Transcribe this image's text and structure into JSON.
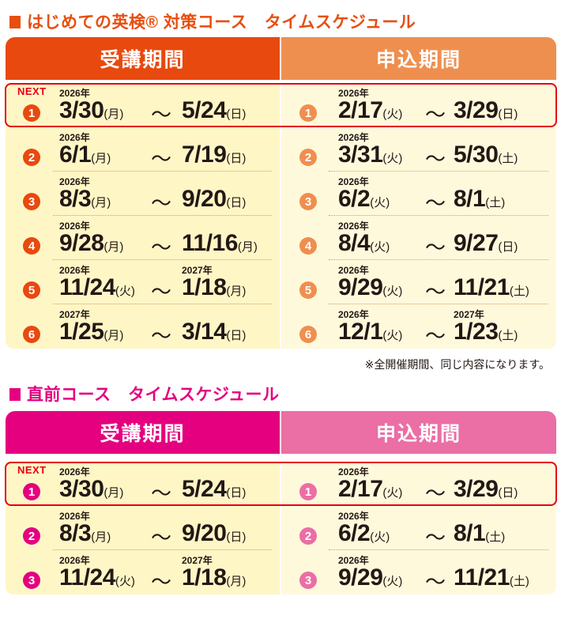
{
  "section1": {
    "title": "はじめての英検® 対策コース　タイムスケジュール",
    "colors": {
      "title": "#e84e0f",
      "header_left": "#e8490f",
      "header_right": "#ef8f4f",
      "badge_left": "#e8490f",
      "badge_right": "#ef8f4f"
    },
    "header": {
      "left": "受講期間",
      "right": "申込期間"
    },
    "next_label": "NEXT",
    "rows": [
      {
        "num": "1",
        "left": {
          "year": "2026年",
          "start": "3/30",
          "start_dow": "(月)",
          "end_year": "",
          "end": "5/24",
          "end_dow": "(日)"
        },
        "right": {
          "year": "2026年",
          "start": "2/17",
          "start_dow": "(火)",
          "end_year": "",
          "end": "3/29",
          "end_dow": "(日)"
        }
      },
      {
        "num": "2",
        "left": {
          "year": "2026年",
          "start": "6/1",
          "start_dow": "(月)",
          "end_year": "",
          "end": "7/19",
          "end_dow": "(日)"
        },
        "right": {
          "year": "2026年",
          "start": "3/31",
          "start_dow": "(火)",
          "end_year": "",
          "end": "5/30",
          "end_dow": "(土)"
        }
      },
      {
        "num": "3",
        "left": {
          "year": "2026年",
          "start": "8/3",
          "start_dow": "(月)",
          "end_year": "",
          "end": "9/20",
          "end_dow": "(日)"
        },
        "right": {
          "year": "2026年",
          "start": "6/2",
          "start_dow": "(火)",
          "end_year": "",
          "end": "8/1",
          "end_dow": "(土)"
        }
      },
      {
        "num": "4",
        "left": {
          "year": "2026年",
          "start": "9/28",
          "start_dow": "(月)",
          "end_year": "",
          "end": "11/16",
          "end_dow": "(月)"
        },
        "right": {
          "year": "2026年",
          "start": "8/4",
          "start_dow": "(火)",
          "end_year": "",
          "end": "9/27",
          "end_dow": "(日)"
        }
      },
      {
        "num": "5",
        "left": {
          "year": "2026年",
          "start": "11/24",
          "start_dow": "(火)",
          "end_year": "2027年",
          "end": "1/18",
          "end_dow": "(月)"
        },
        "right": {
          "year": "2026年",
          "start": "9/29",
          "start_dow": "(火)",
          "end_year": "",
          "end": "11/21",
          "end_dow": "(土)"
        }
      },
      {
        "num": "6",
        "left": {
          "year": "2027年",
          "start": "1/25",
          "start_dow": "(月)",
          "end_year": "",
          "end": "3/14",
          "end_dow": "(日)"
        },
        "right": {
          "year": "2026年",
          "start": "12/1",
          "start_dow": "(火)",
          "end_year": "2027年",
          "end": "1/23",
          "end_dow": "(土)"
        }
      }
    ],
    "note": "※全開催期間、同じ内容になります。"
  },
  "section2": {
    "title": "直前コース　タイムスケジュール",
    "colors": {
      "title": "#e4007f",
      "header_left": "#e4007f",
      "header_right": "#eb6ea5",
      "badge_left": "#e4007f",
      "badge_right": "#eb6ea5"
    },
    "header": {
      "left": "受講期間",
      "right": "申込期間"
    },
    "next_label": "NEXT",
    "rows": [
      {
        "num": "1",
        "left": {
          "year": "2026年",
          "start": "3/30",
          "start_dow": "(月)",
          "end_year": "",
          "end": "5/24",
          "end_dow": "(日)"
        },
        "right": {
          "year": "2026年",
          "start": "2/17",
          "start_dow": "(火)",
          "end_year": "",
          "end": "3/29",
          "end_dow": "(日)"
        }
      },
      {
        "num": "2",
        "left": {
          "year": "2026年",
          "start": "8/3",
          "start_dow": "(月)",
          "end_year": "",
          "end": "9/20",
          "end_dow": "(日)"
        },
        "right": {
          "year": "2026年",
          "start": "6/2",
          "start_dow": "(火)",
          "end_year": "",
          "end": "8/1",
          "end_dow": "(土)"
        }
      },
      {
        "num": "3",
        "left": {
          "year": "2026年",
          "start": "11/24",
          "start_dow": "(火)",
          "end_year": "2027年",
          "end": "1/18",
          "end_dow": "(月)"
        },
        "right": {
          "year": "2026年",
          "start": "9/29",
          "start_dow": "(火)",
          "end_year": "",
          "end": "11/21",
          "end_dow": "(土)"
        }
      }
    ]
  },
  "tilde": "～"
}
